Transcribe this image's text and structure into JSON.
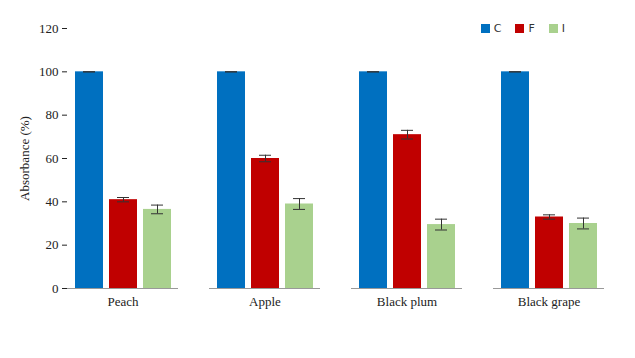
{
  "chart_data": {
    "type": "bar",
    "y_label": "Absorbance (%)",
    "categories": [
      "Peach",
      "Apple",
      "Black plum",
      "Black grape"
    ],
    "series": [
      {
        "name": "C",
        "color": "#0070C0",
        "values": [
          100,
          100,
          100,
          100
        ],
        "errors": [
          0,
          0,
          0,
          0
        ]
      },
      {
        "name": "F",
        "color": "#C00000",
        "values": [
          41,
          60,
          71,
          33
        ],
        "errors": [
          1,
          1.5,
          2,
          1
        ]
      },
      {
        "name": "I",
        "color": "#A9D18E",
        "values": [
          36.5,
          39,
          29.5,
          30
        ],
        "errors": [
          2,
          2.5,
          2.5,
          2.5
        ]
      }
    ],
    "ylim": [
      0,
      120
    ],
    "yticks": [
      0,
      20,
      40,
      60,
      80,
      100,
      120
    ],
    "grid": false,
    "legend": "top-right"
  }
}
